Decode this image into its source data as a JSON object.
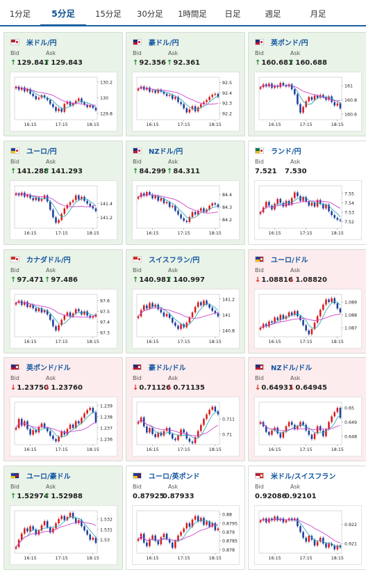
{
  "tabs": [
    {
      "label": "1分足",
      "active": false
    },
    {
      "label": "5分足",
      "active": true
    },
    {
      "label": "15分足",
      "active": false
    },
    {
      "label": "30分足",
      "active": false
    },
    {
      "label": "1時間足",
      "active": false
    },
    {
      "label": "日足",
      "active": false
    },
    {
      "label": "週足",
      "active": false
    },
    {
      "label": "月足",
      "active": false
    }
  ],
  "labels": {
    "bid": "Bid",
    "ask": "Ask"
  },
  "colors": {
    "up_arrow": "#1e8c34",
    "down_arrow": "#d22222",
    "up_candle": "#d81b1b",
    "down_candle": "#1c3f9c",
    "ma_short": "#31a8b8",
    "ma_long": "#cc44cc",
    "up_card_bg": "#e9f3e7",
    "down_card_bg": "#fdeced",
    "flat_card_bg": "#ffffff",
    "tab_active": "#0d4f92"
  },
  "pairs": [
    {
      "name": "米ドル/円",
      "trend": "up",
      "flag": "us-jp",
      "bid_dir": "up",
      "ask_dir": "up",
      "bid": "129.841",
      "ask": "129.843",
      "chart_data": {
        "type": "candlestick",
        "x_ticks": [
          "16:15",
          "17:15",
          "18:15"
        ],
        "y_ticks": [
          "130.2",
          "130",
          "129.8"
        ],
        "ylim": [
          129.72,
          130.26
        ],
        "close": [
          130.14,
          130.1,
          130.13,
          130.08,
          130.11,
          130.05,
          130.02,
          129.98,
          130.0,
          130.03,
          130.0,
          129.97,
          129.92,
          129.88,
          129.83,
          129.86,
          129.82,
          129.92,
          129.95,
          129.9,
          129.93,
          129.96,
          129.99,
          129.94,
          129.91,
          129.88,
          129.9,
          129.87,
          129.84
        ]
      }
    },
    {
      "name": "豪ドル/円",
      "trend": "up",
      "flag": "au-jp",
      "bid_dir": "up",
      "ask_dir": "up",
      "bid": "92.356",
      "ask": "92.361",
      "chart_data": {
        "type": "candlestick",
        "x_ticks": [
          "16:15",
          "17:15",
          "18:15"
        ],
        "y_ticks": [
          "92.5",
          "92.4",
          "92.3",
          "92.2"
        ],
        "ylim": [
          92.14,
          92.55
        ],
        "close": [
          92.44,
          92.46,
          92.43,
          92.45,
          92.41,
          92.42,
          92.4,
          92.43,
          92.41,
          92.39,
          92.37,
          92.38,
          92.34,
          92.36,
          92.31,
          92.29,
          92.25,
          92.21,
          92.24,
          92.27,
          92.22,
          92.26,
          92.29,
          92.31,
          92.33,
          92.36,
          92.38,
          92.39,
          92.36
        ]
      }
    },
    {
      "name": "英ポンド/円",
      "trend": "up",
      "flag": "gb-jp",
      "bid_dir": "up",
      "ask_dir": "up",
      "bid": "160.681",
      "ask": "160.688",
      "chart_data": {
        "type": "candlestick",
        "x_ticks": [
          "16:15",
          "17:15",
          "18:15"
        ],
        "y_ticks": [
          "161",
          "160.8",
          "160.6"
        ],
        "ylim": [
          160.52,
          161.12
        ],
        "close": [
          160.98,
          161.02,
          160.99,
          161.03,
          160.97,
          161.0,
          160.98,
          161.04,
          161.01,
          160.99,
          161.02,
          160.95,
          160.88,
          160.74,
          160.62,
          160.7,
          160.78,
          160.84,
          160.8,
          160.86,
          160.83,
          160.87,
          160.84,
          160.8,
          160.85,
          160.77,
          160.72,
          160.75,
          160.68
        ]
      }
    },
    {
      "name": "ユーロ/円",
      "trend": "up",
      "flag": "eu-jp",
      "bid_dir": "up",
      "ask_dir": "up",
      "bid": "141.288",
      "ask": "141.293",
      "chart_data": {
        "type": "candlestick",
        "x_ticks": [
          "16:15",
          "17:15",
          "18:15"
        ],
        "y_ticks": [
          "141.4",
          "141.2"
        ],
        "ylim": [
          141.04,
          141.66
        ],
        "close": [
          141.55,
          141.52,
          141.56,
          141.5,
          141.53,
          141.48,
          141.45,
          141.49,
          141.44,
          141.47,
          141.52,
          141.43,
          141.31,
          141.2,
          141.12,
          141.16,
          141.25,
          141.33,
          141.38,
          141.42,
          141.45,
          141.52,
          141.46,
          141.5,
          141.44,
          141.4,
          141.36,
          141.33,
          141.29
        ]
      }
    },
    {
      "name": "NZドル/円",
      "trend": "up",
      "flag": "nz-jp",
      "bid_dir": "up",
      "ask_dir": "up",
      "bid": "84.299",
      "ask": "84.311",
      "chart_data": {
        "type": "candlestick",
        "x_ticks": [
          "16:15",
          "17:15",
          "18:15"
        ],
        "y_ticks": [
          "84.4",
          "84.3",
          "84.2"
        ],
        "ylim": [
          84.13,
          84.47
        ],
        "close": [
          84.38,
          84.41,
          84.39,
          84.42,
          84.4,
          84.37,
          84.39,
          84.35,
          84.37,
          84.33,
          84.34,
          84.3,
          84.31,
          84.27,
          84.24,
          84.21,
          84.19,
          84.18,
          84.22,
          84.26,
          84.24,
          84.27,
          84.29,
          84.26,
          84.28,
          84.31,
          84.33,
          84.32,
          84.3
        ]
      }
    },
    {
      "name": "ランド/円",
      "trend": "flat",
      "flag": "za-jp",
      "bid_dir": "none",
      "ask_dir": "none",
      "bid": "7.521",
      "ask": "7.530",
      "chart_data": {
        "type": "candlestick",
        "x_ticks": [
          "16:15",
          "17:15",
          "18:15"
        ],
        "y_ticks": [
          "7.55",
          "7.54",
          "7.53",
          "7.52"
        ],
        "ylim": [
          7.513,
          7.558
        ],
        "close": [
          7.53,
          7.535,
          7.541,
          7.537,
          7.533,
          7.539,
          7.544,
          7.54,
          7.536,
          7.542,
          7.538,
          7.545,
          7.551,
          7.547,
          7.542,
          7.546,
          7.541,
          7.537,
          7.54,
          7.536,
          7.543,
          7.539,
          7.534,
          7.538,
          7.531,
          7.527,
          7.524,
          7.522,
          7.521
        ]
      }
    },
    {
      "name": "カナダドル/円",
      "trend": "up",
      "flag": "ca-jp",
      "bid_dir": "up",
      "ask_dir": "up",
      "bid": "97.471",
      "ask": "97.486",
      "chart_data": {
        "type": "candlestick",
        "x_ticks": [
          "16:15",
          "17:15",
          "18:15"
        ],
        "y_ticks": [
          "97.6",
          "97.5",
          "97.4",
          "97.3"
        ],
        "ylim": [
          97.26,
          97.66
        ],
        "close": [
          97.58,
          97.6,
          97.56,
          97.59,
          97.54,
          97.56,
          97.53,
          97.5,
          97.53,
          97.49,
          97.51,
          97.47,
          97.42,
          97.36,
          97.32,
          97.37,
          97.42,
          97.46,
          97.49,
          97.45,
          97.48,
          97.52,
          97.5,
          97.47,
          97.5,
          97.46,
          97.44,
          97.45,
          97.47
        ]
      }
    },
    {
      "name": "スイスフラン/円",
      "trend": "up",
      "flag": "ch-jp",
      "bid_dir": "up",
      "ask_dir": "up",
      "bid": "140.981",
      "ask": "140.997",
      "chart_data": {
        "type": "candlestick",
        "x_ticks": [
          "16:15",
          "17:15",
          "18:15"
        ],
        "y_ticks": [
          "141.2",
          "141",
          "140.8"
        ],
        "ylim": [
          140.72,
          141.26
        ],
        "close": [
          140.98,
          141.06,
          141.12,
          141.08,
          141.15,
          141.1,
          141.13,
          141.07,
          141.03,
          140.98,
          141.01,
          140.96,
          140.9,
          140.86,
          140.82,
          140.88,
          140.84,
          140.9,
          140.97,
          141.03,
          141.1,
          141.16,
          141.12,
          141.18,
          141.13,
          141.09,
          141.05,
          141.02,
          140.98
        ]
      }
    },
    {
      "name": "ユーロ/ドル",
      "trend": "down",
      "flag": "eu-us",
      "bid_dir": "down",
      "ask_dir": "down",
      "bid": "1.08816",
      "ask": "1.08820",
      "chart_data": {
        "type": "candlestick",
        "x_ticks": [
          "16:15",
          "17:15",
          "18:15"
        ],
        "y_ticks": [
          "1.089",
          "1.088",
          "1.087"
        ],
        "ylim": [
          1.0863,
          1.0896
        ],
        "close": [
          1.087,
          1.0873,
          1.0871,
          1.0875,
          1.0874,
          1.0878,
          1.0876,
          1.088,
          1.0877,
          1.0879,
          1.0882,
          1.088,
          1.0883,
          1.0879,
          1.0876,
          1.0872,
          1.0868,
          1.0865,
          1.0869,
          1.0874,
          1.0879,
          1.0884,
          1.0888,
          1.0892,
          1.089,
          1.0893,
          1.0889,
          1.0885,
          1.0882
        ]
      }
    },
    {
      "name": "英ポンド/ドル",
      "trend": "down",
      "flag": "gb-us",
      "bid_dir": "down",
      "ask_dir": "down",
      "bid": "1.23750",
      "ask": "1.23760",
      "chart_data": {
        "type": "candlestick",
        "x_ticks": [
          "16:15",
          "17:15",
          "18:15"
        ],
        "y_ticks": [
          "1.239",
          "1.238",
          "1.237",
          "1.236"
        ],
        "ylim": [
          1.2355,
          1.2393
        ],
        "close": [
          1.237,
          1.2378,
          1.2372,
          1.2376,
          1.2369,
          1.2364,
          1.2368,
          1.2366,
          1.2371,
          1.2374,
          1.237,
          1.2367,
          1.2363,
          1.236,
          1.2358,
          1.2362,
          1.2367,
          1.2364,
          1.2369,
          1.2373,
          1.237,
          1.2376,
          1.2374,
          1.2379,
          1.2383,
          1.2386,
          1.2388,
          1.2384,
          1.2375
        ]
      }
    },
    {
      "name": "豪ドル/ドル",
      "trend": "down",
      "flag": "au-us",
      "bid_dir": "down",
      "ask_dir": "down",
      "bid": "0.71126",
      "ask": "0.71135",
      "chart_data": {
        "type": "candlestick",
        "x_ticks": [
          "16:15",
          "17:15",
          "18:15"
        ],
        "y_ticks": [
          "0.711",
          "0.71"
        ],
        "ylim": [
          0.7093,
          0.7121
        ],
        "close": [
          0.7108,
          0.7111,
          0.7105,
          0.7101,
          0.7104,
          0.71,
          0.7098,
          0.7101,
          0.7099,
          0.7102,
          0.7104,
          0.71,
          0.7097,
          0.7096,
          0.7099,
          0.7103,
          0.7101,
          0.7097,
          0.7095,
          0.7094,
          0.7098,
          0.7102,
          0.7106,
          0.711,
          0.7113,
          0.7116,
          0.7118,
          0.7115,
          0.7113
        ]
      }
    },
    {
      "name": "NZドル/ドル",
      "trend": "down",
      "flag": "nz-us",
      "bid_dir": "down",
      "ask_dir": "down",
      "bid": "0.64931",
      "ask": "0.64945",
      "chart_data": {
        "type": "candlestick",
        "x_ticks": [
          "16:15",
          "17:15",
          "18:15"
        ],
        "y_ticks": [
          "0.65",
          "0.649",
          "0.648"
        ],
        "ylim": [
          0.6474,
          0.6504
        ],
        "close": [
          0.649,
          0.6487,
          0.6483,
          0.6481,
          0.6484,
          0.6486,
          0.6482,
          0.6479,
          0.6483,
          0.6487,
          0.649,
          0.6488,
          0.6485,
          0.6487,
          0.649,
          0.6488,
          0.6484,
          0.6481,
          0.6478,
          0.6482,
          0.6487,
          0.6484,
          0.648,
          0.6485,
          0.649,
          0.6494,
          0.6497,
          0.65,
          0.6493
        ]
      }
    },
    {
      "name": "ユーロ/豪ドル",
      "trend": "up",
      "flag": "eu-au",
      "bid_dir": "up",
      "ask_dir": "up",
      "bid": "1.52974",
      "ask": "1.52988",
      "chart_data": {
        "type": "candlestick",
        "x_ticks": [
          "16:15",
          "17:15",
          "18:15"
        ],
        "y_ticks": [
          "1.532",
          "1.531",
          "1.53"
        ],
        "ylim": [
          1.5287,
          1.5328
        ],
        "close": [
          1.5293,
          1.53,
          1.5306,
          1.5311,
          1.5308,
          1.5313,
          1.531,
          1.5305,
          1.5309,
          1.5314,
          1.5318,
          1.5312,
          1.5307,
          1.5311,
          1.5316,
          1.532,
          1.5323,
          1.5319,
          1.5322,
          1.5326,
          1.5321,
          1.5316,
          1.5319,
          1.5313,
          1.5309,
          1.5305,
          1.53,
          1.5302,
          1.5297
        ]
      }
    },
    {
      "name": "ユーロ/英ポンド",
      "trend": "flat",
      "flag": "eu-gb",
      "bid_dir": "none",
      "ask_dir": "none",
      "bid": "0.87925",
      "ask": "0.87933",
      "chart_data": {
        "type": "candlestick",
        "x_ticks": [
          "16:15",
          "17:15",
          "18:15"
        ],
        "y_ticks": [
          "0.88",
          "0.8795",
          "0.879",
          "0.8785",
          "0.878"
        ],
        "ylim": [
          0.8778,
          0.8802
        ],
        "close": [
          0.8786,
          0.8789,
          0.8784,
          0.8782,
          0.8786,
          0.8788,
          0.8785,
          0.8783,
          0.8787,
          0.8789,
          0.8786,
          0.8784,
          0.8781,
          0.8785,
          0.8788,
          0.879,
          0.8792,
          0.8795,
          0.8793,
          0.8797,
          0.8799,
          0.8796,
          0.8798,
          0.8794,
          0.8796,
          0.8793,
          0.8795,
          0.8791,
          0.8792
        ]
      }
    },
    {
      "name": "米ドル/スイスフラン",
      "trend": "flat",
      "flag": "us-ch",
      "bid_dir": "none",
      "ask_dir": "none",
      "bid": "0.92086",
      "ask": "0.92101",
      "chart_data": {
        "type": "candlestick",
        "x_ticks": [
          "16:15",
          "17:15",
          "18:15"
        ],
        "y_ticks": [
          "0.922",
          "0.921"
        ],
        "ylim": [
          0.9205,
          0.9227
        ],
        "close": [
          0.9222,
          0.9223,
          0.9221,
          0.9223,
          0.9222,
          0.9224,
          0.9222,
          0.9223,
          0.9221,
          0.9222,
          0.9223,
          0.9222,
          0.9223,
          0.9219,
          0.9216,
          0.9213,
          0.9211,
          0.9214,
          0.9212,
          0.9209,
          0.9211,
          0.9213,
          0.921,
          0.9208,
          0.921,
          0.9209,
          0.9207,
          0.9209,
          0.9208
        ]
      }
    }
  ]
}
